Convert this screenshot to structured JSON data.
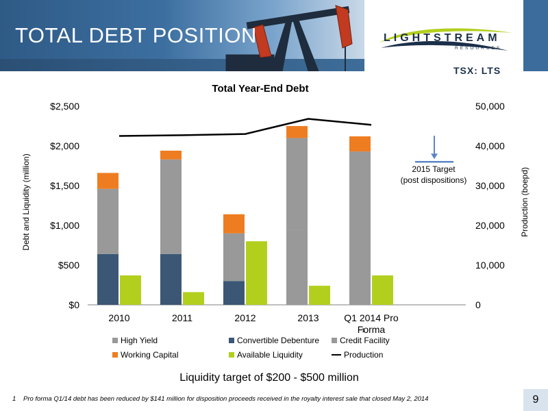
{
  "slide": {
    "title": "TOTAL DEBT POSITION",
    "logo_main": "LIGHTSTREAM",
    "logo_sub": "RESOURCES",
    "ticker": "TSX: LTS",
    "page_number": "9"
  },
  "footnote": {
    "number": "1",
    "text": "Pro forma Q1/14 debt has been reduced by $141 million for disposition proceeds received in the royalty interest sale that closed May 2, 2014"
  },
  "liquidity_note": "Liquidity target of $200 - $500 million",
  "target_annotation": {
    "line1": "2015 Target",
    "line2": "(post dispositions)",
    "value": 36000
  },
  "chart_data": {
    "type": "bar",
    "title": "Total Year-End Debt",
    "ylabel": "Debt and Liquidity (million)",
    "y2label": "Production (boepd)",
    "categories": [
      "2010",
      "2011",
      "2012",
      "2013",
      "Q1 2014 Pro Forma"
    ],
    "category_footnote": "1",
    "ylim": [
      0,
      2500
    ],
    "y_ticks": [
      "$0",
      "$500",
      "$1,000",
      "$1,500",
      "$2,000",
      "$2,500"
    ],
    "y_tick_values": [
      0,
      500,
      1000,
      1500,
      2000,
      2500
    ],
    "y2lim": [
      0,
      50000
    ],
    "y2_ticks": [
      "0",
      "10,000",
      "20,000",
      "30,000",
      "40,000",
      "50,000"
    ],
    "y2_tick_values": [
      0,
      10000,
      20000,
      30000,
      40000,
      50000
    ],
    "legend_position": "bottom",
    "grid": false,
    "stacked_series": [
      {
        "name": "Convertible Debenture",
        "color": "#3b5775",
        "values": [
          640,
          640,
          300,
          0,
          0
        ]
      },
      {
        "name": "High Yield",
        "color": "#999999",
        "values": [
          820,
          1190,
          600,
          940,
          1000
        ]
      },
      {
        "name": "Credit Facility",
        "color": "#999999",
        "values": [
          0,
          0,
          0,
          1160,
          930
        ]
      },
      {
        "name": "Working Capital",
        "color": "#ee7d22",
        "values": [
          200,
          110,
          240,
          150,
          190
        ]
      }
    ],
    "side_series": {
      "name": "Available Liquidity",
      "color": "#b3cf1e",
      "values": [
        370,
        160,
        800,
        240,
        370
      ]
    },
    "line_series": {
      "name": "Production",
      "color": "#000000",
      "axis": "right",
      "values": [
        42500,
        42700,
        43000,
        46800,
        45300
      ]
    },
    "legend": [
      {
        "name": "High Yield",
        "kind": "box",
        "color": "#999999"
      },
      {
        "name": "Convertible Debenture",
        "kind": "box",
        "color": "#3b5775"
      },
      {
        "name": "Credit Facility",
        "kind": "box",
        "color": "#999999"
      },
      {
        "name": "Working Capital",
        "kind": "box",
        "color": "#ee7d22"
      },
      {
        "name": "Available Liquidity",
        "kind": "box",
        "color": "#b3cf1e"
      },
      {
        "name": "Production",
        "kind": "line",
        "color": "#000000"
      }
    ]
  }
}
